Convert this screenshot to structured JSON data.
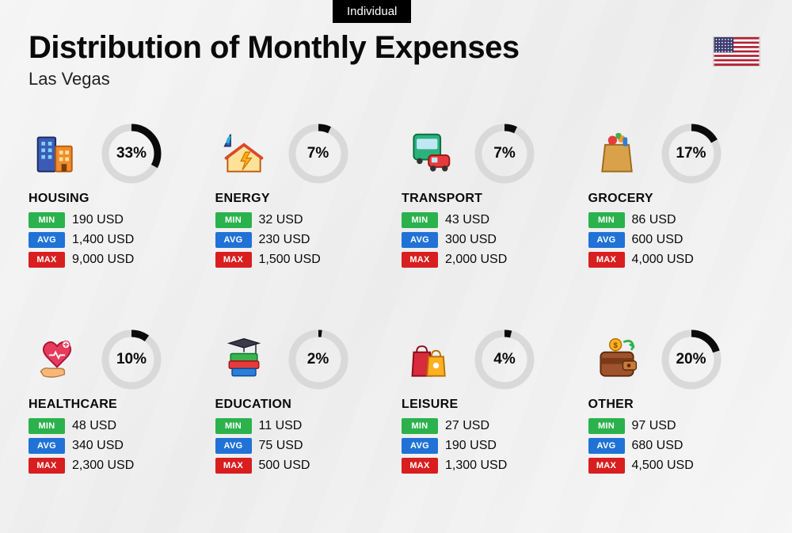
{
  "badge": "Individual",
  "title": "Distribution of Monthly Expenses",
  "subtitle": "Las Vegas",
  "currency": "USD",
  "colors": {
    "min": "#2bb24c",
    "avg": "#2072d6",
    "max": "#d81e1e",
    "ring_bg": "#d9d9d9",
    "ring_fg": "#0a0a0a"
  },
  "labels": {
    "min": "MIN",
    "avg": "AVG",
    "max": "MAX"
  },
  "flag": {
    "stripes": [
      "#b22234",
      "#ffffff",
      "#b22234",
      "#ffffff",
      "#b22234",
      "#ffffff",
      "#b22234",
      "#ffffff",
      "#b22234",
      "#ffffff",
      "#b22234",
      "#ffffff",
      "#b22234"
    ],
    "canton": "#3c3b6e"
  },
  "categories": [
    {
      "key": "housing",
      "name": "HOUSING",
      "pct": 33,
      "min": "190",
      "avg": "1,400",
      "max": "9,000",
      "icon": "buildings"
    },
    {
      "key": "energy",
      "name": "ENERGY",
      "pct": 7,
      "min": "32",
      "avg": "230",
      "max": "1,500",
      "icon": "energy-house"
    },
    {
      "key": "transport",
      "name": "TRANSPORT",
      "pct": 7,
      "min": "43",
      "avg": "300",
      "max": "2,000",
      "icon": "bus-car"
    },
    {
      "key": "grocery",
      "name": "GROCERY",
      "pct": 17,
      "min": "86",
      "avg": "600",
      "max": "4,000",
      "icon": "grocery-bag"
    },
    {
      "key": "healthcare",
      "name": "HEALTHCARE",
      "pct": 10,
      "min": "48",
      "avg": "340",
      "max": "2,300",
      "icon": "heart-hand"
    },
    {
      "key": "education",
      "name": "EDUCATION",
      "pct": 2,
      "min": "11",
      "avg": "75",
      "max": "500",
      "icon": "books-cap"
    },
    {
      "key": "leisure",
      "name": "LEISURE",
      "pct": 4,
      "min": "27",
      "avg": "190",
      "max": "1,300",
      "icon": "shopping-bags"
    },
    {
      "key": "other",
      "name": "OTHER",
      "pct": 20,
      "min": "97",
      "avg": "680",
      "max": "4,500",
      "icon": "wallet"
    }
  ]
}
